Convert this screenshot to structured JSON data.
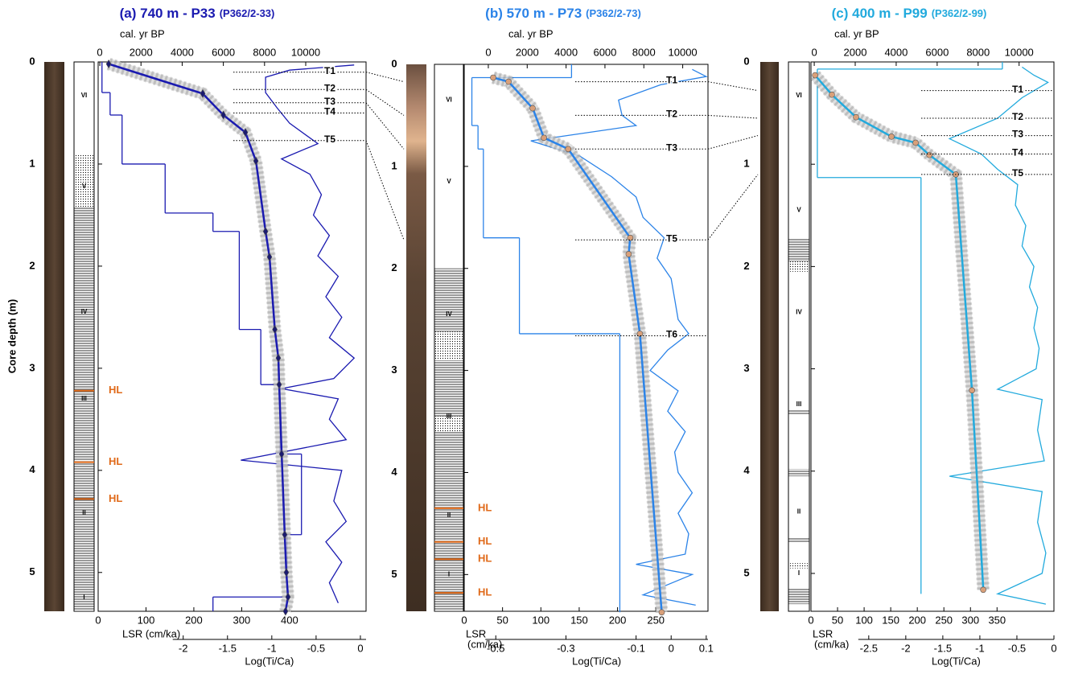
{
  "chart_data": [
    {
      "type": "line",
      "title": "(a) 740 m - P33",
      "subtitle": "(P362/2-33)",
      "color": "#1a1ab0",
      "marker": "diamond",
      "marker_color": "#1a1a70",
      "ylabel": "Core depth (m)",
      "ylim": [
        0,
        5.38
      ],
      "yticks": [
        0,
        1,
        2,
        3,
        4,
        5
      ],
      "age_label": "cal. yr BP",
      "age_lim": [
        -80,
        12930
      ],
      "age_ticks": [
        0,
        2000,
        4000,
        6000,
        8000,
        10000
      ],
      "lsr_label": [
        "LSR (cm/ka)"
      ],
      "lsr_lim": [
        0,
        560
      ],
      "lsr_ticks": [
        0,
        100,
        200,
        300,
        400
      ],
      "ti_label": "Log(Ti/Ca)",
      "ti_lim": [
        -2.96,
        0.064
      ],
      "ti_ticks": [
        -2,
        -1.5,
        -1,
        -0.5,
        0
      ],
      "age_model": {
        "depth": [
          0.02,
          0.31,
          0.52,
          0.69,
          0.97,
          1.66,
          1.91,
          2.62,
          2.9,
          3.16,
          3.84,
          4.63,
          5.0,
          5.24,
          5.38
        ],
        "age": [
          430,
          5000,
          6000,
          7070,
          7580,
          8050,
          8240,
          8500,
          8670,
          8710,
          8830,
          8980,
          9060,
          9140,
          9020
        ]
      },
      "lsr": {
        "depths": [
          0,
          0.3,
          0.52,
          1.0,
          1.48,
          1.66,
          2.62,
          3.16,
          3.84,
          4.63,
          5.24,
          5.38
        ],
        "values": [
          8,
          25,
          50,
          140,
          240,
          295,
          340,
          380,
          425,
          395,
          240
        ]
      },
      "ti_ca": {
        "depth": [
          0.03,
          0.08,
          0.15,
          0.3,
          0.45,
          0.6,
          0.8,
          0.95,
          1.1,
          1.3,
          1.5,
          1.7,
          1.9,
          2.1,
          2.3,
          2.5,
          2.7,
          2.9,
          3.1,
          3.2,
          3.3,
          3.5,
          3.7,
          3.9,
          4.0,
          4.3,
          4.5,
          4.7,
          4.9,
          5.1,
          5.3
        ],
        "values": [
          -0.07,
          -0.8,
          -1.07,
          -1.07,
          -0.94,
          -0.8,
          -0.48,
          -0.89,
          -0.57,
          -0.44,
          -0.53,
          -0.35,
          -0.48,
          -0.25,
          -0.39,
          -0.21,
          -0.35,
          -0.07,
          -0.3,
          -0.89,
          -0.25,
          -0.35,
          -0.16,
          -1.35,
          -0.21,
          -0.3,
          -0.16,
          -0.39,
          -0.21,
          -0.35,
          -0.25
        ]
      },
      "units": {
        "labels": [
          "VI",
          "V",
          "IV",
          "III",
          "II",
          "I"
        ],
        "depth": [
          0.33,
          1.22,
          2.45,
          3.3,
          4.42,
          5.25
        ]
      },
      "hl": {
        "label": "HL",
        "depth": [
          3.22,
          3.92,
          4.28
        ]
      },
      "ties": {
        "labels": [
          "T1",
          "T2",
          "T3",
          "T4",
          "T5"
        ],
        "depth": [
          0.1,
          0.27,
          0.4,
          0.5,
          0.77
        ]
      },
      "laminated": [
        [
          1.42,
          5.38
        ]
      ],
      "dotted": [
        [
          0.9,
          1.42
        ]
      ]
    },
    {
      "type": "line",
      "title": "(b) 570 m - P73",
      "subtitle": "(P362/2-73)",
      "color": "#2b83e8",
      "marker": "circle",
      "marker_color": "#d9a07a",
      "ylim": [
        0,
        5.36
      ],
      "yticks": [
        0,
        1,
        2,
        3,
        4,
        5
      ],
      "age_label": "cal. yr BP",
      "age_lim": [
        -1240,
        11300
      ],
      "age_ticks": [
        0,
        2000,
        4000,
        6000,
        8000,
        10000
      ],
      "lsr_label": [
        "LSR",
        "(cm/ka)"
      ],
      "lsr_lim": [
        0,
        318
      ],
      "lsr_ticks": [
        0,
        50,
        100,
        150,
        200,
        250
      ],
      "ti_label": "Log(Ti/Ca)",
      "ti_lim": [
        -0.59,
        0.105
      ],
      "ti_ticks": [
        -0.5,
        -0.3,
        -0.1,
        0,
        0.1
      ],
      "age_model": {
        "depth": [
          0.13,
          0.17,
          0.43,
          0.72,
          0.83,
          1.7,
          1.86,
          2.64,
          5.37
        ],
        "age": [
          250,
          1040,
          2280,
          2860,
          4110,
          7300,
          7220,
          7800,
          8920
        ]
      },
      "lsr": {
        "depths": [
          0,
          0.13,
          0.6,
          0.83,
          1.7,
          2.64,
          5.37
        ],
        "values": [
          140,
          10,
          18,
          25,
          72,
          203
        ]
      },
      "ti_ca": {
        "depth": [
          0.05,
          0.12,
          0.2,
          0.35,
          0.5,
          0.6,
          0.75,
          0.9,
          1.1,
          1.3,
          1.5,
          1.7,
          1.9,
          2.1,
          2.3,
          2.5,
          2.64,
          2.8,
          3.0,
          3.2,
          3.4,
          3.6,
          3.8,
          4.0,
          4.2,
          4.4,
          4.6,
          4.8,
          4.9,
          5.0,
          5.2,
          5.3
        ],
        "values": [
          0.06,
          0.1,
          -0.03,
          -0.15,
          -0.14,
          -0.1,
          -0.4,
          -0.26,
          -0.17,
          -0.1,
          -0.08,
          -0.02,
          -0.04,
          0.0,
          0.01,
          0.02,
          0.05,
          -0.01,
          -0.06,
          0.02,
          -0.01,
          0.04,
          0.01,
          0.02,
          0.06,
          0.02,
          0.05,
          0.04,
          -0.1,
          0.06,
          -0.08,
          0.07
        ]
      },
      "units": {
        "labels": [
          "VI",
          "V",
          "IV",
          "III",
          "II",
          "I"
        ],
        "depth": [
          0.35,
          1.15,
          2.45,
          3.45,
          4.42,
          5.0
        ]
      },
      "hl": {
        "label": "HL",
        "depth": [
          4.35,
          4.68,
          4.85,
          5.18
        ]
      },
      "ties": {
        "labels": [
          "T1",
          "T2",
          "T3",
          "T5",
          "T6"
        ],
        "depth": [
          0.17,
          0.5,
          0.83,
          1.72,
          2.66
        ]
      },
      "laminated": [
        [
          2.0,
          2.62
        ],
        [
          2.9,
          3.45
        ],
        [
          3.6,
          5.36
        ]
      ],
      "dotted": [
        [
          2.62,
          2.9
        ],
        [
          3.45,
          3.6
        ]
      ]
    },
    {
      "type": "line",
      "title": "(c) 400 m - P99",
      "subtitle": "(P362/2-99)",
      "color": "#22aadd",
      "marker": "circle",
      "marker_color": "#d9a07a",
      "ylim": [
        0,
        5.37
      ],
      "yticks": [
        0,
        1,
        2,
        3,
        4,
        5
      ],
      "age_label": "cal. yr BP",
      "age_lim": [
        -160,
        11700
      ],
      "age_ticks": [
        0,
        2000,
        4000,
        6000,
        8000,
        10000
      ],
      "lsr_label": [
        "LSR",
        "(cm/ka)"
      ],
      "lsr_lim": [
        0,
        457
      ],
      "lsr_ticks": [
        0,
        50,
        100,
        150,
        200,
        250,
        300,
        350
      ],
      "ti_label": "Log(Ti/Ca)",
      "ti_lim": [
        -3.28,
        0
      ],
      "ti_ticks": [
        -2.5,
        -2,
        -1.5,
        -1,
        -0.5,
        0
      ],
      "age_model": {
        "depth": [
          0.13,
          0.32,
          0.54,
          0.73,
          0.79,
          0.91,
          1.1,
          3.21,
          5.16
        ],
        "age": [
          40,
          860,
          2040,
          3770,
          4950,
          5620,
          6910,
          7700,
          8250
        ]
      },
      "lsr": {
        "depths": [
          0,
          0.07,
          1.13,
          5.2
        ],
        "values": [
          360,
          12,
          207
        ]
      },
      "ti_ca": {
        "depth": [
          0.05,
          0.13,
          0.2,
          0.35,
          0.55,
          0.75,
          0.9,
          1.05,
          1.2,
          1.4,
          1.6,
          1.8,
          2.0,
          2.2,
          2.4,
          2.6,
          2.8,
          3.0,
          3.2,
          3.3,
          3.6,
          3.9,
          4.05,
          4.2,
          4.5,
          4.8,
          5.0,
          5.2,
          5.3
        ],
        "values": [
          -0.43,
          -0.27,
          -0.08,
          -0.43,
          -0.76,
          -1.41,
          -0.98,
          -0.76,
          -0.49,
          -0.52,
          -0.38,
          -0.43,
          -0.27,
          -0.33,
          -0.22,
          -0.27,
          -0.2,
          -0.24,
          -0.76,
          -0.16,
          -0.22,
          -0.13,
          -1.41,
          -0.16,
          -0.22,
          -0.11,
          -0.16,
          -0.76,
          -0.11
        ]
      },
      "units": {
        "labels": [
          "VI",
          "V",
          "IV",
          "III",
          "II",
          "I"
        ],
        "depth": [
          0.33,
          1.45,
          2.45,
          3.35,
          4.4,
          5.0
        ]
      },
      "ties": {
        "labels": [
          "T1",
          "T2",
          "T3",
          "T4",
          "T5"
        ],
        "depth": [
          0.28,
          0.55,
          0.72,
          0.9,
          1.1
        ]
      },
      "laminated": [
        [
          1.72,
          1.95
        ],
        [
          3.4,
          3.45
        ],
        [
          3.98,
          4.05
        ],
        [
          4.65,
          4.7
        ],
        [
          5.15,
          5.3
        ]
      ],
      "dotted": [
        [
          1.95,
          2.05
        ],
        [
          4.9,
          4.95
        ]
      ]
    }
  ]
}
